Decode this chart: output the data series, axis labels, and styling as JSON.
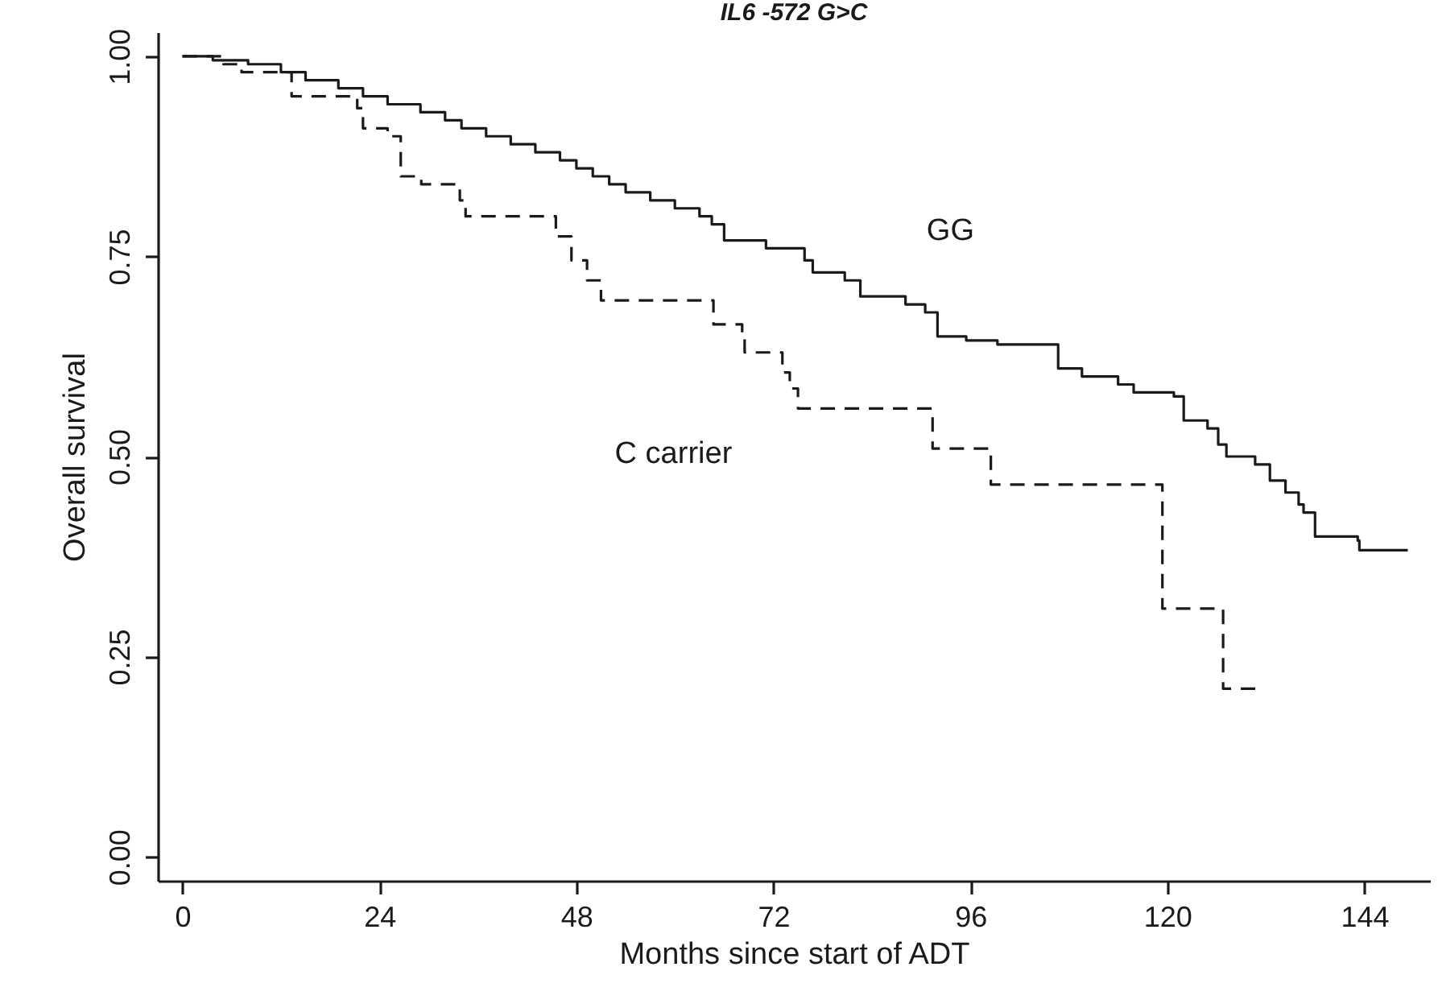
{
  "chart_data": {
    "type": "step",
    "title": "IL6 -572 G>C",
    "xlabel": "Months since start of ADT",
    "ylabel": "Overall survival",
    "xlim": [
      -3,
      152
    ],
    "ylim": [
      -0.03,
      1.03
    ],
    "xticks": [
      0,
      24,
      48,
      72,
      96,
      120,
      144
    ],
    "yticks": [
      {
        "value": 0,
        "label": "0.00"
      },
      {
        "value": 0.25,
        "label": "0.25"
      },
      {
        "value": 0.5,
        "label": "0.50"
      },
      {
        "value": 0.75,
        "label": "0.75"
      },
      {
        "value": 1,
        "label": "1.00"
      }
    ],
    "grid": false,
    "series": [
      {
        "name": "GG",
        "color": "#1a1a1a",
        "line_style": "solid",
        "x": [
          0,
          3.7,
          8,
          12,
          15,
          19,
          22,
          25,
          29,
          32,
          34,
          37,
          40,
          43,
          46,
          48,
          50,
          52,
          54,
          57,
          60,
          63,
          64.5,
          66,
          71.1,
          75.8,
          76.8,
          80.7,
          82.6,
          88.1,
          90.5,
          92,
          95.5,
          99.3,
          106.7,
          109.6,
          114,
          115.9,
          120.8,
          122,
          124.9,
          126.2,
          127.2,
          130.7,
          132.5,
          134.4,
          136,
          136.6,
          138,
          143.2,
          143.4,
          149.3
        ],
        "values": [
          1.0,
          0.995,
          0.99,
          0.98,
          0.97,
          0.96,
          0.95,
          0.94,
          0.93,
          0.92,
          0.91,
          0.9,
          0.89,
          0.88,
          0.87,
          0.86,
          0.85,
          0.84,
          0.83,
          0.82,
          0.81,
          0.8,
          0.79,
          0.77,
          0.76,
          0.745,
          0.73,
          0.72,
          0.7,
          0.69,
          0.68,
          0.65,
          0.645,
          0.64,
          0.61,
          0.6,
          0.59,
          0.58,
          0.575,
          0.545,
          0.535,
          0.515,
          0.5,
          0.49,
          0.47,
          0.455,
          0.44,
          0.43,
          0.4,
          0.395,
          0.383,
          0.383
        ]
      },
      {
        "name": "C carrier",
        "color": "#1a1a1a",
        "line_style": "dashed",
        "x": [
          0,
          5,
          7.2,
          13.3,
          21.3,
          22,
          25,
          26.6,
          29.1,
          33.8,
          34.5,
          45.5,
          47.4,
          49.3,
          51,
          64.7,
          68.2,
          68.5,
          73.1,
          74,
          75,
          91.4,
          98.5,
          119.4,
          126.8,
          131.1
        ],
        "values": [
          1.0,
          0.99,
          0.98,
          0.95,
          0.935,
          0.91,
          0.9,
          0.85,
          0.84,
          0.82,
          0.8,
          0.775,
          0.745,
          0.72,
          0.695,
          0.665,
          0.655,
          0.63,
          0.605,
          0.585,
          0.56,
          0.51,
          0.465,
          0.31,
          0.21,
          0.21
        ]
      }
    ]
  }
}
